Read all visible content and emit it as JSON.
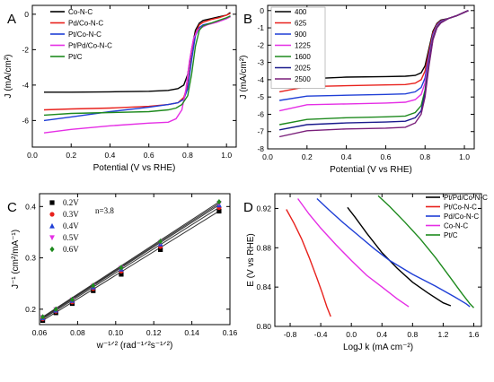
{
  "chart_data": [
    {
      "panel_label": "A",
      "type": "line",
      "xlabel": "Potential (V vs RHE)",
      "ylabel": "J (mA/cm²)",
      "xlim": [
        0.0,
        1.05
      ],
      "ylim": [
        -7.5,
        0.5
      ],
      "xticks": [
        0.0,
        0.2,
        0.4,
        0.6,
        0.8,
        1.0
      ],
      "yticks": [
        0,
        -2,
        -4,
        -6
      ],
      "grid": false,
      "legend": "top-left",
      "series": [
        {
          "name": "Co-N-C",
          "color": "#000000",
          "x": [
            0.06,
            0.2,
            0.4,
            0.6,
            0.7,
            0.75,
            0.78,
            0.8,
            0.82,
            0.84,
            0.86,
            0.88,
            0.92,
            0.96,
            1.0,
            1.02
          ],
          "y": [
            -4.4,
            -4.4,
            -4.38,
            -4.35,
            -4.3,
            -4.2,
            -4.0,
            -3.4,
            -2.0,
            -0.9,
            -0.5,
            -0.35,
            -0.25,
            -0.15,
            -0.05,
            0.1
          ]
        },
        {
          "name": "Pd/Co-N-C",
          "color": "#e8211c",
          "x": [
            0.06,
            0.2,
            0.4,
            0.6,
            0.7,
            0.75,
            0.78,
            0.8,
            0.82,
            0.84,
            0.86,
            0.88,
            0.92,
            0.96,
            1.0,
            1.02
          ],
          "y": [
            -5.4,
            -5.35,
            -5.3,
            -5.2,
            -5.1,
            -5.0,
            -4.7,
            -4.0,
            -2.5,
            -1.1,
            -0.6,
            -0.45,
            -0.3,
            -0.2,
            -0.05,
            0.05
          ]
        },
        {
          "name": "Pt/Co-N-C",
          "color": "#1f3fd6",
          "x": [
            0.06,
            0.2,
            0.4,
            0.6,
            0.7,
            0.75,
            0.78,
            0.8,
            0.82,
            0.84,
            0.86,
            0.88,
            0.92,
            0.96,
            1.0,
            1.02
          ],
          "y": [
            -6.0,
            -5.8,
            -5.5,
            -5.25,
            -5.1,
            -5.0,
            -4.8,
            -4.2,
            -2.6,
            -1.2,
            -0.75,
            -0.6,
            -0.5,
            -0.4,
            -0.25,
            -0.1
          ]
        },
        {
          "name": "Pt/Pd/Co-N-C",
          "color": "#e52ee5",
          "x": [
            0.06,
            0.2,
            0.4,
            0.6,
            0.7,
            0.74,
            0.77,
            0.79,
            0.81,
            0.83,
            0.85,
            0.87,
            0.9,
            0.95,
            1.0,
            1.02
          ],
          "y": [
            -6.7,
            -6.5,
            -6.3,
            -6.15,
            -6.1,
            -5.9,
            -5.4,
            -4.3,
            -2.6,
            -1.4,
            -0.9,
            -0.75,
            -0.6,
            -0.45,
            -0.25,
            -0.15
          ]
        },
        {
          "name": "Pt/C",
          "color": "#1e8a1e",
          "x": [
            0.06,
            0.2,
            0.4,
            0.6,
            0.7,
            0.74,
            0.77,
            0.8,
            0.82,
            0.84,
            0.86,
            0.88,
            0.92,
            0.96,
            1.0,
            1.02
          ],
          "y": [
            -5.7,
            -5.6,
            -5.55,
            -5.5,
            -5.4,
            -5.3,
            -5.1,
            -4.6,
            -3.4,
            -1.8,
            -0.9,
            -0.65,
            -0.5,
            -0.35,
            -0.2,
            -0.1
          ]
        }
      ]
    },
    {
      "panel_label": "B",
      "type": "line",
      "xlabel": "Potential (V vs RHE)",
      "ylabel": "J (mA/cm²)",
      "xlim": [
        0.0,
        1.05
      ],
      "ylim": [
        -8,
        0.3
      ],
      "xticks": [
        0.0,
        0.2,
        0.4,
        0.6,
        0.8,
        1.0
      ],
      "yticks": [
        0,
        -1,
        -2,
        -3,
        -4,
        -5,
        -6,
        -7,
        -8
      ],
      "grid": false,
      "legend": "top-left",
      "series": [
        {
          "name": "400",
          "color": "#000000",
          "x": [
            0.06,
            0.2,
            0.4,
            0.6,
            0.7,
            0.75,
            0.78,
            0.8,
            0.82,
            0.84,
            0.86,
            0.88,
            0.92,
            0.96,
            1.0,
            1.02
          ],
          "y": [
            -4.2,
            -3.95,
            -3.85,
            -3.82,
            -3.8,
            -3.75,
            -3.6,
            -3.2,
            -2.2,
            -1.2,
            -0.75,
            -0.55,
            -0.45,
            -0.3,
            -0.1,
            0.0
          ]
        },
        {
          "name": "625",
          "color": "#e8211c",
          "x": [
            0.06,
            0.2,
            0.4,
            0.6,
            0.7,
            0.75,
            0.78,
            0.8,
            0.82,
            0.84,
            0.86,
            0.88,
            0.92,
            0.96,
            1.0,
            1.02
          ],
          "y": [
            -4.7,
            -4.4,
            -4.35,
            -4.3,
            -4.28,
            -4.2,
            -4.0,
            -3.5,
            -2.4,
            -1.3,
            -0.8,
            -0.6,
            -0.45,
            -0.3,
            -0.1,
            0.0
          ]
        },
        {
          "name": "900",
          "color": "#1f3fd6",
          "x": [
            0.06,
            0.2,
            0.4,
            0.6,
            0.7,
            0.75,
            0.78,
            0.8,
            0.82,
            0.84,
            0.86,
            0.88,
            0.92,
            0.96,
            1.0,
            1.02
          ],
          "y": [
            -5.2,
            -4.95,
            -4.9,
            -4.85,
            -4.82,
            -4.7,
            -4.45,
            -3.9,
            -2.6,
            -1.4,
            -0.85,
            -0.62,
            -0.45,
            -0.3,
            -0.1,
            0.0
          ]
        },
        {
          "name": "1225",
          "color": "#e52ee5",
          "x": [
            0.06,
            0.2,
            0.4,
            0.6,
            0.7,
            0.75,
            0.78,
            0.8,
            0.82,
            0.84,
            0.86,
            0.88,
            0.92,
            0.96,
            1.0,
            1.02
          ],
          "y": [
            -5.8,
            -5.45,
            -5.4,
            -5.35,
            -5.3,
            -5.15,
            -4.85,
            -4.2,
            -2.8,
            -1.5,
            -0.9,
            -0.65,
            -0.45,
            -0.3,
            -0.1,
            0.0
          ]
        },
        {
          "name": "1600",
          "color": "#1e8a1e",
          "x": [
            0.06,
            0.2,
            0.4,
            0.6,
            0.7,
            0.75,
            0.78,
            0.8,
            0.82,
            0.84,
            0.86,
            0.88,
            0.92,
            0.96,
            1.0,
            1.02
          ],
          "y": [
            -6.6,
            -6.3,
            -6.2,
            -6.15,
            -6.1,
            -5.9,
            -5.5,
            -4.6,
            -3.0,
            -1.6,
            -0.95,
            -0.68,
            -0.45,
            -0.3,
            -0.1,
            0.0
          ]
        },
        {
          "name": "2025",
          "color": "#1a1a8c",
          "x": [
            0.06,
            0.2,
            0.4,
            0.6,
            0.7,
            0.75,
            0.78,
            0.8,
            0.82,
            0.84,
            0.86,
            0.88,
            0.92,
            0.96,
            1.0,
            1.02
          ],
          "y": [
            -6.9,
            -6.6,
            -6.5,
            -6.45,
            -6.4,
            -6.2,
            -5.8,
            -4.8,
            -3.1,
            -1.65,
            -1.0,
            -0.7,
            -0.45,
            -0.3,
            -0.1,
            0.0
          ]
        },
        {
          "name": "2500",
          "color": "#7a1f7a",
          "x": [
            0.06,
            0.2,
            0.4,
            0.6,
            0.7,
            0.75,
            0.78,
            0.8,
            0.82,
            0.84,
            0.86,
            0.88,
            0.92,
            0.96,
            1.0,
            1.02
          ],
          "y": [
            -7.3,
            -6.95,
            -6.85,
            -6.8,
            -6.75,
            -6.5,
            -6.0,
            -5.0,
            -3.2,
            -1.7,
            -1.0,
            -0.72,
            -0.45,
            -0.3,
            -0.1,
            0.0
          ]
        }
      ]
    },
    {
      "panel_label": "C",
      "type": "scatter",
      "xlabel": "w⁻¹ᐟ² (rad⁻¹ᐟ²s⁻¹ᐟ²)",
      "ylabel": "J⁻¹ (cm²/mA⁻¹)",
      "annotation": "n=3.8",
      "xlim": [
        0.06,
        0.16
      ],
      "ylim": [
        0.17,
        0.425
      ],
      "xticks": [
        0.06,
        0.08,
        0.1,
        0.12,
        0.14,
        0.16
      ],
      "yticks": [
        0.2,
        0.3,
        0.4
      ],
      "grid": false,
      "legend": "top-left",
      "x": [
        0.0617,
        0.0686,
        0.0772,
        0.0882,
        0.1029,
        0.1235,
        0.1543
      ],
      "series": [
        {
          "name": "0.2V",
          "color": "#000000",
          "marker": "square",
          "values": [
            0.178,
            0.193,
            0.211,
            0.236,
            0.268,
            0.316,
            0.391
          ]
        },
        {
          "name": "0.3V",
          "color": "#e8211c",
          "marker": "circle",
          "values": [
            0.181,
            0.196,
            0.214,
            0.24,
            0.274,
            0.322,
            0.398
          ]
        },
        {
          "name": "0.4V",
          "color": "#1f3fd6",
          "marker": "triangle-up",
          "values": [
            0.183,
            0.198,
            0.217,
            0.243,
            0.278,
            0.327,
            0.403
          ]
        },
        {
          "name": "0.5V",
          "color": "#e52ee5",
          "marker": "triangle-down",
          "values": [
            0.184,
            0.199,
            0.218,
            0.245,
            0.28,
            0.33,
            0.406
          ]
        },
        {
          "name": "0.6V",
          "color": "#1e8a1e",
          "marker": "diamond",
          "values": [
            0.185,
            0.2,
            0.219,
            0.246,
            0.281,
            0.332,
            0.409
          ]
        }
      ]
    },
    {
      "panel_label": "D",
      "type": "line",
      "xlabel": "LogJ k (mA cm⁻²)",
      "ylabel": "E (V vs RHE)",
      "xlim": [
        -1.0,
        1.7
      ],
      "ylim": [
        0.8,
        0.935
      ],
      "xticks": [
        -0.8,
        -0.4,
        0.0,
        0.4,
        0.8,
        1.2,
        1.6
      ],
      "yticks": [
        0.8,
        0.84,
        0.88,
        0.92
      ],
      "grid": false,
      "legend": "top-right",
      "series": [
        {
          "name": "Pt/Pd/Co-N-C",
          "color": "#000000",
          "x": [
            -0.05,
            0.05,
            0.2,
            0.4,
            0.6,
            0.8,
            1.0,
            1.2,
            1.3
          ],
          "y": [
            0.921,
            0.911,
            0.895,
            0.875,
            0.859,
            0.845,
            0.834,
            0.824,
            0.821
          ]
        },
        {
          "name": "Pt/Co-N-C",
          "color": "#e8211c",
          "x": [
            -0.85,
            -0.75,
            -0.65,
            -0.55,
            -0.45,
            -0.38,
            -0.32,
            -0.27
          ],
          "y": [
            0.919,
            0.905,
            0.889,
            0.87,
            0.849,
            0.834,
            0.82,
            0.81
          ]
        },
        {
          "name": "Pd/Co-N-C",
          "color": "#1f3fd6",
          "x": [
            -0.45,
            -0.3,
            -0.1,
            0.1,
            0.3,
            0.5,
            0.8,
            1.1,
            1.35,
            1.5,
            1.55
          ],
          "y": [
            0.93,
            0.919,
            0.905,
            0.892,
            0.879,
            0.867,
            0.853,
            0.841,
            0.83,
            0.823,
            0.82
          ]
        },
        {
          "name": "Co-N-C",
          "color": "#e52ee5",
          "x": [
            -0.7,
            -0.55,
            -0.4,
            -0.2,
            0.0,
            0.2,
            0.4,
            0.6,
            0.75
          ],
          "y": [
            0.93,
            0.914,
            0.9,
            0.883,
            0.867,
            0.852,
            0.84,
            0.828,
            0.82
          ]
        },
        {
          "name": "Pt/C",
          "color": "#1e8a1e",
          "x": [
            0.35,
            0.5,
            0.7,
            0.9,
            1.1,
            1.3,
            1.45,
            1.55,
            1.6
          ],
          "y": [
            0.933,
            0.922,
            0.906,
            0.889,
            0.87,
            0.849,
            0.833,
            0.823,
            0.819
          ]
        }
      ]
    }
  ]
}
